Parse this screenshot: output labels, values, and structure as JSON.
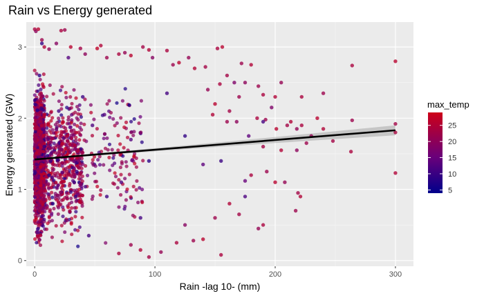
{
  "chart_data": {
    "type": "scatter",
    "title": "Rain vs Energy generated",
    "xlabel": "Rain -lag 10- (mm)",
    "ylabel": "Energy generated (GW)",
    "xlim": [
      -7,
      315
    ],
    "ylim": [
      -0.08,
      3.35
    ],
    "xticks": [
      0,
      100,
      200,
      300
    ],
    "yticks": [
      0,
      1,
      2,
      3
    ],
    "grid": true,
    "legend": {
      "title": "max_temp",
      "position": "right",
      "type": "colorbar",
      "range": [
        4,
        29
      ],
      "ticks": [
        5,
        10,
        15,
        20,
        25
      ],
      "colors": {
        "low": "#00008b",
        "mid": "#7b0076",
        "high": "#cd0018"
      }
    },
    "trend_line": {
      "method": "linear",
      "color": "#000000",
      "x": [
        0,
        300
      ],
      "y": [
        1.42,
        1.83
      ],
      "confidence_band": true
    },
    "points": [
      [
        0,
        3.25,
        24
      ],
      [
        1,
        3.22,
        20
      ],
      [
        3,
        3.25,
        26
      ],
      [
        6,
        3.1,
        22
      ],
      [
        8,
        3.0,
        25
      ],
      [
        12,
        2.97,
        21
      ],
      [
        18,
        3.05,
        19
      ],
      [
        22,
        3.23,
        24
      ],
      [
        25,
        3.24,
        22
      ],
      [
        30,
        3.0,
        26
      ],
      [
        38,
        2.98,
        23
      ],
      [
        42,
        2.9,
        20
      ],
      [
        52,
        2.98,
        27
      ],
      [
        55,
        3.02,
        25
      ],
      [
        60,
        2.85,
        22
      ],
      [
        70,
        2.9,
        24
      ],
      [
        75,
        2.92,
        21
      ],
      [
        80,
        2.88,
        26
      ],
      [
        90,
        3.0,
        23
      ],
      [
        95,
        2.96,
        25
      ],
      [
        98,
        2.85,
        19
      ],
      [
        110,
        2.95,
        24
      ],
      [
        115,
        2.75,
        22
      ],
      [
        120,
        2.78,
        26
      ],
      [
        128,
        2.85,
        21
      ],
      [
        133,
        2.7,
        25
      ],
      [
        142,
        2.72,
        23
      ],
      [
        152,
        2.98,
        24
      ],
      [
        156,
        3.0,
        26
      ],
      [
        172,
        2.77,
        22
      ],
      [
        180,
        2.75,
        25
      ],
      [
        205,
        2.5,
        21
      ],
      [
        264,
        2.74,
        24
      ],
      [
        300,
        2.8,
        26
      ],
      [
        160,
        2.6,
        23
      ],
      [
        175,
        2.5,
        20
      ],
      [
        186,
        2.45,
        22
      ],
      [
        200,
        2.3,
        25
      ],
      [
        190,
        2.33,
        24
      ],
      [
        170,
        2.3,
        22
      ],
      [
        166,
        2.5,
        18
      ],
      [
        154,
        2.48,
        24
      ],
      [
        144,
        2.4,
        21
      ],
      [
        150,
        2.2,
        26
      ],
      [
        162,
        2.1,
        23
      ],
      [
        148,
        2.05,
        25
      ],
      [
        160,
        1.95,
        22
      ],
      [
        168,
        1.95,
        20
      ],
      [
        185,
        2.0,
        24
      ],
      [
        192,
        1.98,
        22
      ],
      [
        197,
        2.15,
        18
      ],
      [
        201,
        1.85,
        26
      ],
      [
        210,
        1.9,
        23
      ],
      [
        213,
        1.95,
        25
      ],
      [
        218,
        1.85,
        21
      ],
      [
        222,
        1.9,
        24
      ],
      [
        226,
        1.65,
        22
      ],
      [
        218,
        1.55,
        20
      ],
      [
        205,
        1.55,
        25
      ],
      [
        190,
        1.6,
        23
      ],
      [
        193,
        1.25,
        22
      ],
      [
        180,
        1.2,
        24
      ],
      [
        200,
        1.1,
        26
      ],
      [
        208,
        1.1,
        21
      ],
      [
        219,
        0.95,
        23
      ],
      [
        221,
        0.9,
        25
      ],
      [
        217,
        0.7,
        22
      ],
      [
        190,
        0.5,
        24
      ],
      [
        186,
        0.45,
        21
      ],
      [
        170,
        0.65,
        23
      ],
      [
        162,
        0.8,
        25
      ],
      [
        150,
        0.6,
        22
      ],
      [
        155,
        0.08,
        24
      ],
      [
        140,
        0.3,
        26
      ],
      [
        132,
        0.28,
        22
      ],
      [
        125,
        0.5,
        19
      ],
      [
        118,
        0.25,
        24
      ],
      [
        105,
        0.12,
        21
      ],
      [
        95,
        0.05,
        23
      ],
      [
        88,
        0.15,
        25
      ],
      [
        80,
        0.22,
        22
      ],
      [
        70,
        0.1,
        24
      ],
      [
        300,
        1.23,
        25
      ],
      [
        300,
        1.8,
        24
      ],
      [
        300,
        1.92,
        23
      ],
      [
        264,
        1.97,
        22
      ],
      [
        263,
        1.53,
        24
      ],
      [
        248,
        1.68,
        23
      ],
      [
        240,
        1.85,
        25
      ],
      [
        230,
        1.75,
        21
      ],
      [
        222,
        2.3,
        24
      ],
      [
        240,
        2.35,
        22
      ],
      [
        235,
        2.0,
        26
      ],
      [
        175,
        1.12,
        15
      ],
      [
        175,
        0.9,
        12
      ],
      [
        155,
        1.4,
        10
      ],
      [
        140,
        1.35,
        14
      ],
      [
        125,
        1.75,
        9
      ],
      [
        110,
        2.35,
        11
      ],
      [
        95,
        1.4,
        8
      ],
      [
        80,
        1.7,
        13
      ],
      [
        60,
        0.9,
        10
      ],
      [
        48,
        1.9,
        12
      ],
      [
        35,
        1.25,
        9
      ],
      [
        20,
        2.1,
        11
      ],
      [
        15,
        0.8,
        7
      ],
      [
        8,
        1.6,
        10
      ],
      [
        4,
        2.6,
        8
      ],
      [
        2,
        0.4,
        12
      ],
      [
        6,
        3.05,
        9
      ],
      [
        28,
        2.85,
        13
      ],
      [
        45,
        0.35,
        11
      ],
      [
        190,
        1.95,
        11
      ],
      [
        178,
        1.75,
        14
      ],
      [
        72,
        1.1,
        12
      ],
      [
        40,
        2.3,
        10
      ],
      [
        12,
        1.2,
        8
      ],
      [
        58,
        2.05,
        13
      ],
      [
        88,
        0.6,
        11
      ]
    ]
  }
}
